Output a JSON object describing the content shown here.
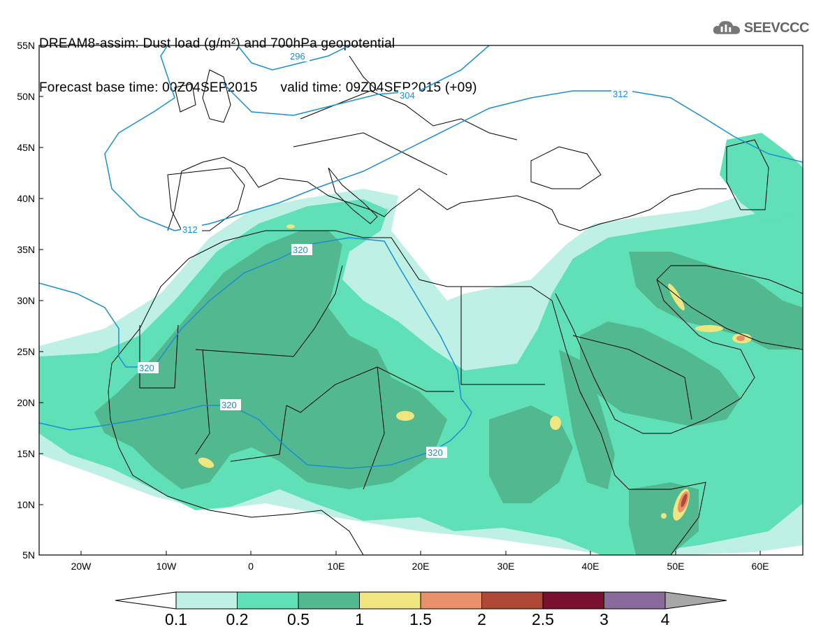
{
  "header": {
    "title_line1": "DREAM8-assim: Dust load (g/m²) and 700hPa geopotential",
    "title_line2": "Forecast base time: 00Z04SEP2015      valid time: 09Z04SEP2015 (+09)",
    "logo_text": "SEEVCCC"
  },
  "map": {
    "lat_labels": [
      "55N",
      "50N",
      "45N",
      "40N",
      "35N",
      "30N",
      "25N",
      "20N",
      "15N",
      "10N",
      "5N"
    ],
    "lon_labels": [
      "20W",
      "10W",
      "0",
      "10E",
      "20E",
      "30E",
      "40E",
      "50E",
      "60E"
    ],
    "contour_labels": [
      "296",
      "304",
      "312",
      "312",
      "320",
      "320",
      "320",
      "320"
    ],
    "contour_color": "#1a8fd0"
  },
  "colorbar": {
    "labels": [
      "0.1",
      "0.2",
      "0.5",
      "1",
      "1.5",
      "2",
      "2.5",
      "3",
      "4"
    ],
    "colors": [
      "#bff0e6",
      "#5fe0b6",
      "#52b890",
      "#f0e680",
      "#e89068",
      "#b04838",
      "#7a1030",
      "#8a6a9a",
      "#a6a6a6"
    ]
  },
  "dust_colors": {
    "light": "#bff0e6",
    "medium": "#5fe0b6",
    "dark": "#52b890",
    "yellow": "#f0e680",
    "orange": "#e89068",
    "red": "#b04838"
  }
}
